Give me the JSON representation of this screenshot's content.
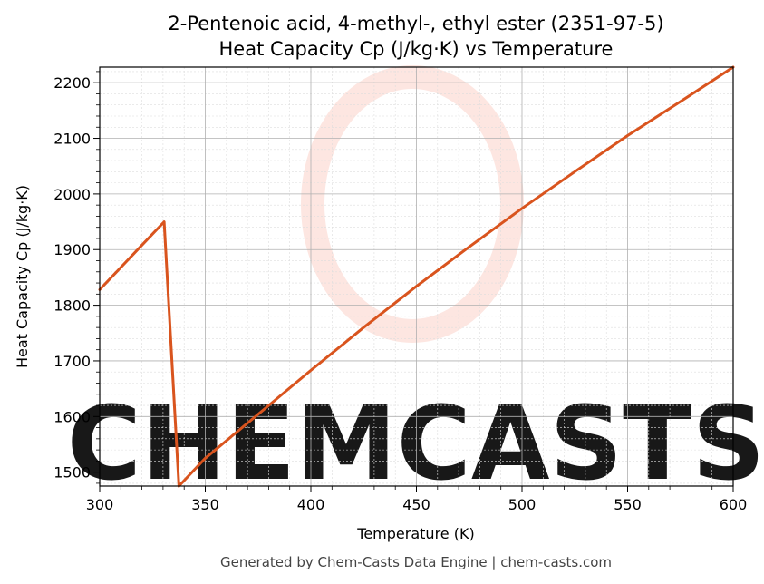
{
  "chart_data": {
    "type": "line",
    "title": "2-Pentenoic acid, 4-methyl-, ethyl ester (2351-97-5)",
    "subtitle": "Heat Capacity Cp (J/kg·K) vs Temperature",
    "xlabel": "Temperature (K)",
    "ylabel": "Heat Capacity Cp (J/kg·K)",
    "xlim": [
      300,
      600
    ],
    "ylim": [
      1475,
      2228
    ],
    "x_ticks": [
      300,
      350,
      400,
      450,
      500,
      550,
      600
    ],
    "y_ticks": [
      1500,
      1600,
      1700,
      1800,
      1900,
      2000,
      2100,
      2200
    ],
    "grid": true,
    "series": [
      {
        "color": "#d9541e",
        "x": [
          300,
          310,
          320,
          330.5,
          337.5,
          350,
          375,
          400,
          425,
          450,
          475,
          500,
          525,
          550,
          575,
          600
        ],
        "y": [
          1828,
          1868,
          1908,
          1950,
          1475,
          1525,
          1604,
          1683,
          1760,
          1834,
          1905,
          1974,
          2040,
          2105,
          2166,
          2228
        ]
      }
    ]
  },
  "watermark": {
    "text": "CHEMCASTS",
    "color": "#fde0da"
  },
  "footer": "Generated by Chem-Casts Data Engine | chem-casts.com"
}
